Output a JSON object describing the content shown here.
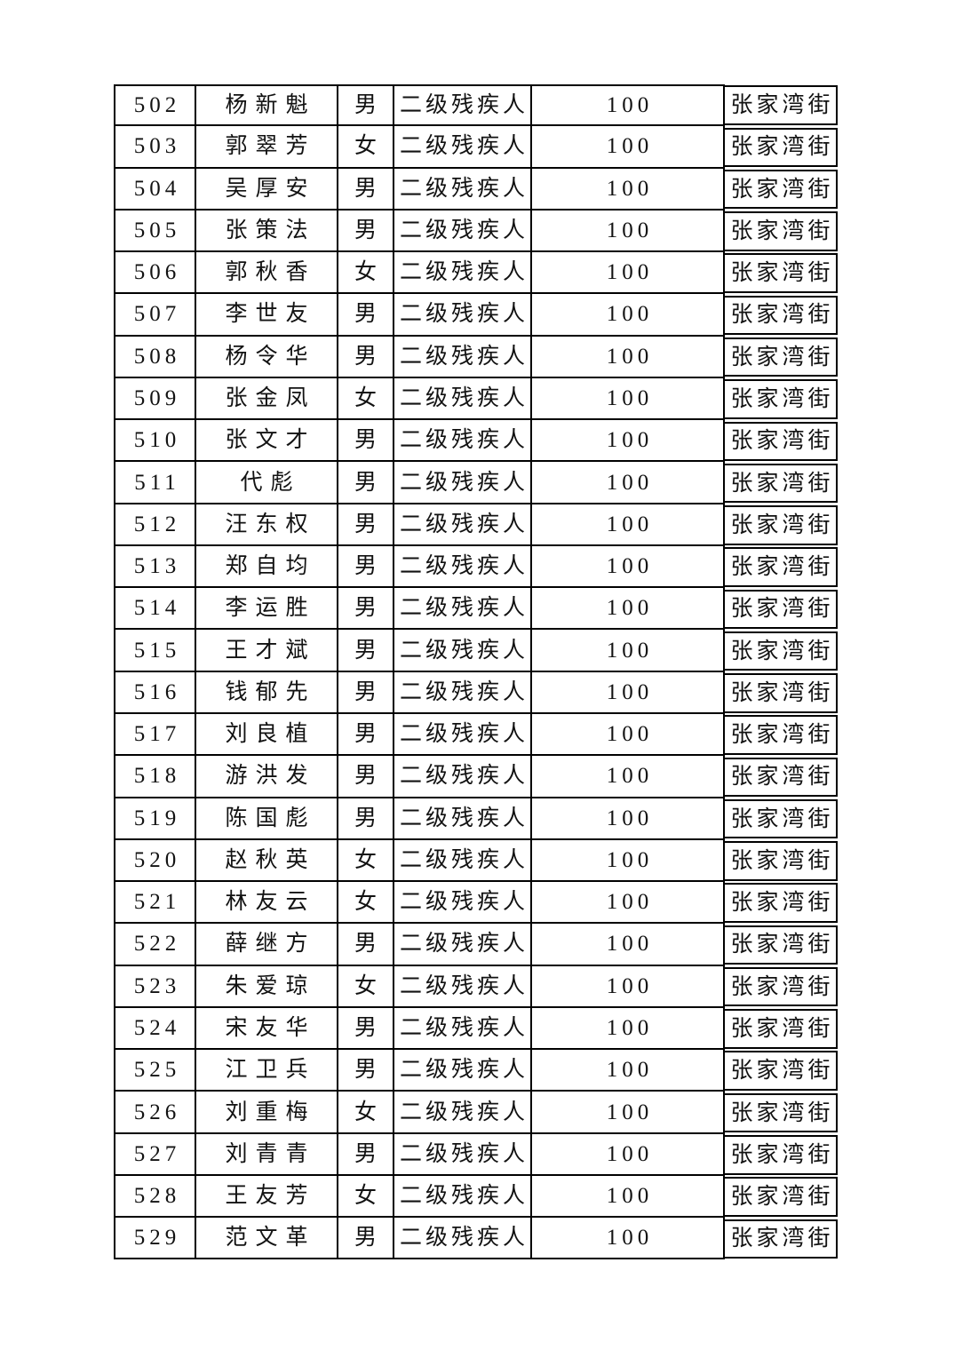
{
  "page": {
    "background": "#ffffff",
    "text_color": "#121212",
    "border_color": "#000000"
  },
  "table": {
    "columns": [
      {
        "key": "no",
        "name": "serial-number"
      },
      {
        "key": "name",
        "name": "person-name"
      },
      {
        "key": "gender",
        "name": "gender"
      },
      {
        "key": "category",
        "name": "subsidy-category"
      },
      {
        "key": "amount",
        "name": "subsidy-amount"
      },
      {
        "key": "street",
        "name": "street-office"
      }
    ],
    "rows": [
      {
        "no": "502",
        "name": "杨新魁",
        "gender": "男",
        "category": "二级残疾人",
        "amount": "100",
        "street": "张家湾街"
      },
      {
        "no": "503",
        "name": "郭翠芳",
        "gender": "女",
        "category": "二级残疾人",
        "amount": "100",
        "street": "张家湾街"
      },
      {
        "no": "504",
        "name": "吴厚安",
        "gender": "男",
        "category": "二级残疾人",
        "amount": "100",
        "street": "张家湾街"
      },
      {
        "no": "505",
        "name": "张策法",
        "gender": "男",
        "category": "二级残疾人",
        "amount": "100",
        "street": "张家湾街"
      },
      {
        "no": "506",
        "name": "郭秋香",
        "gender": "女",
        "category": "二级残疾人",
        "amount": "100",
        "street": "张家湾街"
      },
      {
        "no": "507",
        "name": "李世友",
        "gender": "男",
        "category": "二级残疾人",
        "amount": "100",
        "street": "张家湾街"
      },
      {
        "no": "508",
        "name": "杨令华",
        "gender": "男",
        "category": "二级残疾人",
        "amount": "100",
        "street": "张家湾街"
      },
      {
        "no": "509",
        "name": "张金凤",
        "gender": "女",
        "category": "二级残疾人",
        "amount": "100",
        "street": "张家湾街"
      },
      {
        "no": "510",
        "name": "张文才",
        "gender": "男",
        "category": "二级残疾人",
        "amount": "100",
        "street": "张家湾街"
      },
      {
        "no": "511",
        "name": "代彪",
        "gender": "男",
        "category": "二级残疾人",
        "amount": "100",
        "street": "张家湾街"
      },
      {
        "no": "512",
        "name": "汪东权",
        "gender": "男",
        "category": "二级残疾人",
        "amount": "100",
        "street": "张家湾街"
      },
      {
        "no": "513",
        "name": "郑自均",
        "gender": "男",
        "category": "二级残疾人",
        "amount": "100",
        "street": "张家湾街"
      },
      {
        "no": "514",
        "name": "李运胜",
        "gender": "男",
        "category": "二级残疾人",
        "amount": "100",
        "street": "张家湾街"
      },
      {
        "no": "515",
        "name": "王才斌",
        "gender": "男",
        "category": "二级残疾人",
        "amount": "100",
        "street": "张家湾街"
      },
      {
        "no": "516",
        "name": "钱郁先",
        "gender": "男",
        "category": "二级残疾人",
        "amount": "100",
        "street": "张家湾街"
      },
      {
        "no": "517",
        "name": "刘良植",
        "gender": "男",
        "category": "二级残疾人",
        "amount": "100",
        "street": "张家湾街"
      },
      {
        "no": "518",
        "name": "游洪发",
        "gender": "男",
        "category": "二级残疾人",
        "amount": "100",
        "street": "张家湾街"
      },
      {
        "no": "519",
        "name": "陈国彪",
        "gender": "男",
        "category": "二级残疾人",
        "amount": "100",
        "street": "张家湾街"
      },
      {
        "no": "520",
        "name": "赵秋英",
        "gender": "女",
        "category": "二级残疾人",
        "amount": "100",
        "street": "张家湾街"
      },
      {
        "no": "521",
        "name": "林友云",
        "gender": "女",
        "category": "二级残疾人",
        "amount": "100",
        "street": "张家湾街"
      },
      {
        "no": "522",
        "name": "薛继方",
        "gender": "男",
        "category": "二级残疾人",
        "amount": "100",
        "street": "张家湾街"
      },
      {
        "no": "523",
        "name": "朱爱琼",
        "gender": "女",
        "category": "二级残疾人",
        "amount": "100",
        "street": "张家湾街"
      },
      {
        "no": "524",
        "name": "宋友华",
        "gender": "男",
        "category": "二级残疾人",
        "amount": "100",
        "street": "张家湾街"
      },
      {
        "no": "525",
        "name": "江卫兵",
        "gender": "男",
        "category": "二级残疾人",
        "amount": "100",
        "street": "张家湾街"
      },
      {
        "no": "526",
        "name": "刘重梅",
        "gender": "女",
        "category": "二级残疾人",
        "amount": "100",
        "street": "张家湾街"
      },
      {
        "no": "527",
        "name": "刘青青",
        "gender": "男",
        "category": "二级残疾人",
        "amount": "100",
        "street": "张家湾街"
      },
      {
        "no": "528",
        "name": "王友芳",
        "gender": "女",
        "category": "二级残疾人",
        "amount": "100",
        "street": "张家湾街"
      },
      {
        "no": "529",
        "name": "范文革",
        "gender": "男",
        "category": "二级残疾人",
        "amount": "100",
        "street": "张家湾街"
      }
    ]
  }
}
